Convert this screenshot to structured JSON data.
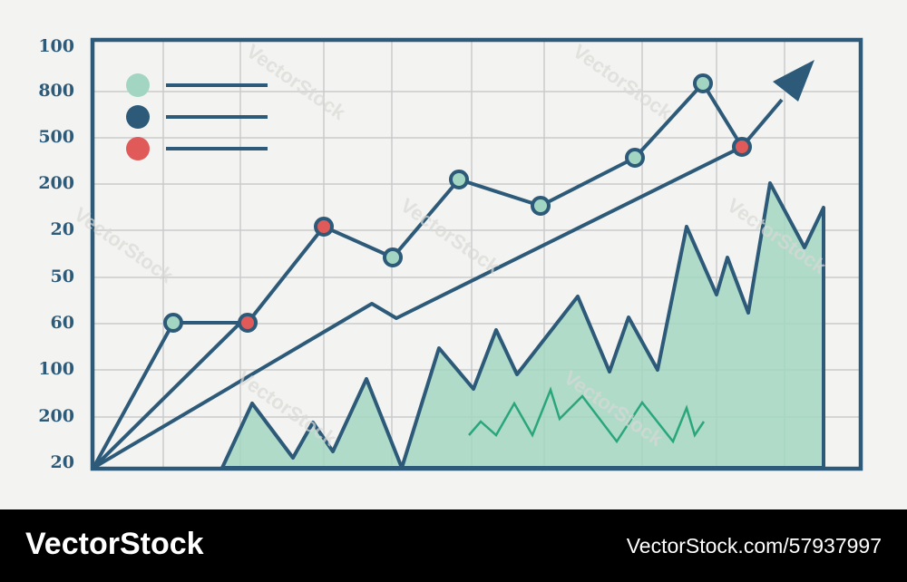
{
  "axis_labels": [
    100,
    800,
    500,
    200,
    20,
    50,
    60,
    100,
    200,
    20
  ],
  "watermark": "VectorStock",
  "footer": {
    "brand": "VectorStock",
    "url": "VectorStock.com/57937997"
  }
}
